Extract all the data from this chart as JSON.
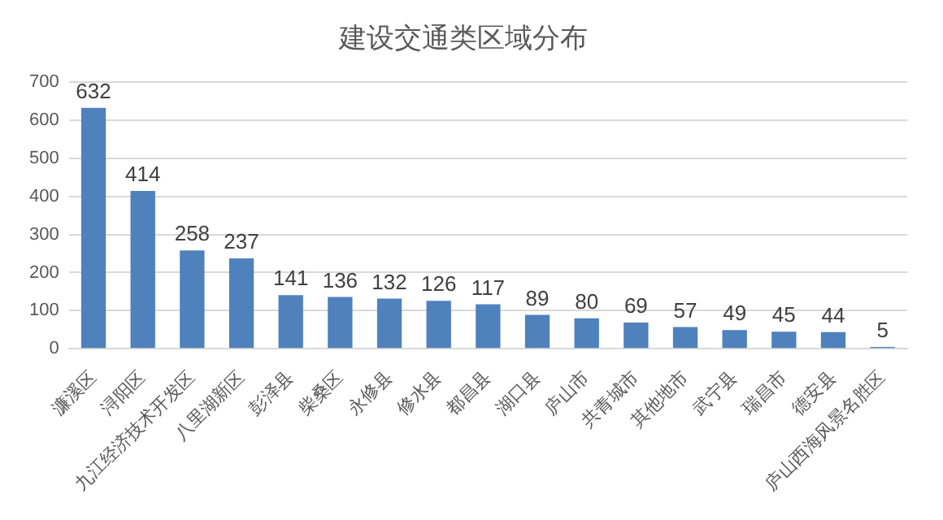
{
  "chart_data": {
    "type": "bar",
    "title": "建设交通类区域分布",
    "categories": [
      "濂溪区",
      "浔阳区",
      "九江经济技术开发区",
      "八里湖新区",
      "彭泽县",
      "柴桑区",
      "永修县",
      "修水县",
      "都昌县",
      "湖口县",
      "庐山市",
      "共青城市",
      "其他地市",
      "武宁县",
      "瑞昌市",
      "德安县",
      "庐山西海风景名胜区"
    ],
    "values": [
      632,
      414,
      258,
      237,
      141,
      136,
      132,
      126,
      117,
      89,
      80,
      69,
      57,
      49,
      45,
      44,
      5
    ],
    "color": "#4f81bd",
    "ylim": [
      0,
      700
    ],
    "yticks": [
      0,
      100,
      200,
      300,
      400,
      500,
      600,
      700
    ],
    "grid": "y",
    "data_labels": true
  }
}
